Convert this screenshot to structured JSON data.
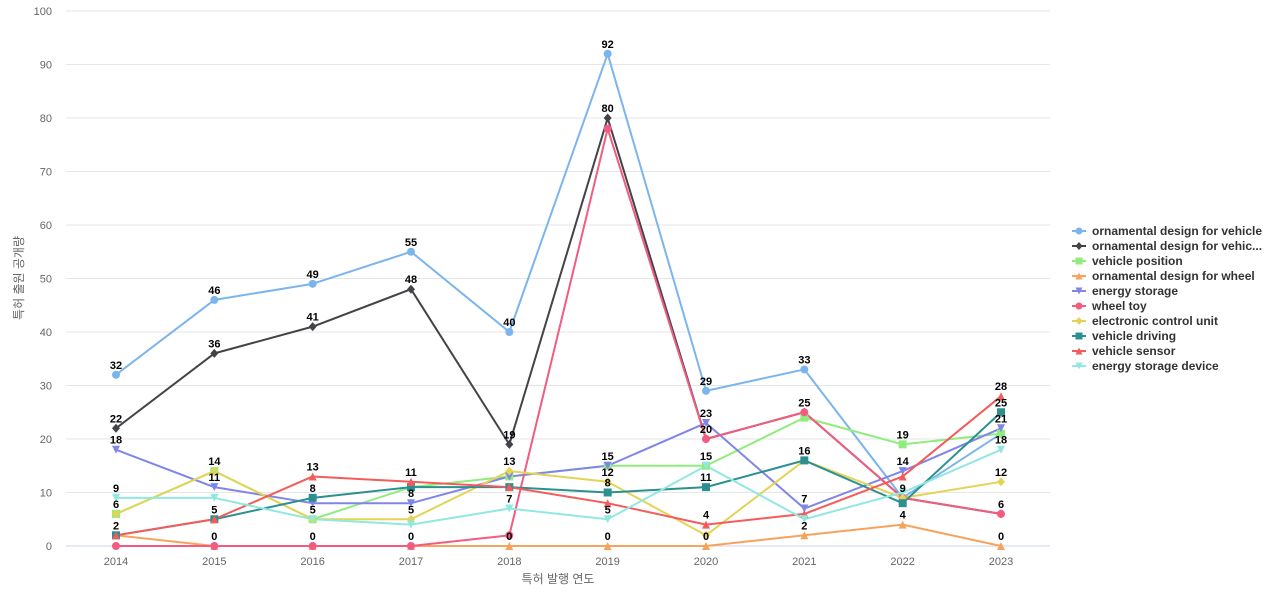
{
  "chart_data": {
    "type": "line",
    "title": "",
    "xlabel": "특허 발행 연도",
    "ylabel": "특허 출원 공개량",
    "ylim": [
      0,
      100
    ],
    "y_ticks": [
      0,
      10,
      20,
      30,
      40,
      50,
      60,
      70,
      80,
      90,
      100
    ],
    "grid": true,
    "legend_position": "right",
    "x": [
      "2014",
      "2015",
      "2016",
      "2017",
      "2018",
      "2019",
      "2020",
      "2021",
      "2022",
      "2023"
    ],
    "series": [
      {
        "name": "ornamental design for vehicle",
        "color": "#7cb5ec",
        "marker": "circle",
        "values": [
          32,
          46,
          49,
          55,
          40,
          92,
          29,
          33,
          9,
          21
        ]
      },
      {
        "name": "ornamental design for vehic...",
        "color": "#434348",
        "marker": "diamond",
        "values": [
          22,
          36,
          41,
          48,
          19,
          80,
          20,
          25,
          9,
          6
        ]
      },
      {
        "name": "vehicle position",
        "color": "#90ed7d",
        "marker": "square",
        "values": [
          6,
          14,
          5,
          11,
          13,
          15,
          15,
          24,
          19,
          21
        ]
      },
      {
        "name": "ornamental design for wheel",
        "color": "#f7a35c",
        "marker": "triangle",
        "values": [
          2,
          0,
          0,
          0,
          0,
          0,
          0,
          2,
          4,
          0
        ]
      },
      {
        "name": "energy storage",
        "color": "#8085e9",
        "marker": "triangle-down",
        "values": [
          18,
          11,
          8,
          8,
          13,
          15,
          23,
          7,
          14,
          22
        ]
      },
      {
        "name": "wheel toy",
        "color": "#f15c80",
        "marker": "circle",
        "values": [
          0,
          0,
          0,
          0,
          2,
          78,
          20,
          25,
          9,
          6
        ]
      },
      {
        "name": "electronic control unit",
        "color": "#e4d354",
        "marker": "diamond",
        "values": [
          6,
          14,
          5,
          5,
          14,
          12,
          2,
          16,
          9,
          12
        ]
      },
      {
        "name": "vehicle driving",
        "color": "#2b908f",
        "marker": "square",
        "values": [
          2,
          5,
          9,
          11,
          11,
          10,
          11,
          16,
          8,
          25
        ]
      },
      {
        "name": "vehicle sensor",
        "color": "#f45b5b",
        "marker": "triangle",
        "values": [
          2,
          5,
          13,
          12,
          11,
          8,
          4,
          6,
          13,
          28
        ]
      },
      {
        "name": "energy storage device",
        "color": "#91e8e1",
        "marker": "triangle-down",
        "values": [
          9,
          9,
          5,
          4,
          7,
          5,
          15,
          5,
          10,
          18
        ]
      }
    ],
    "data_labels": [
      {
        "x": "2014",
        "text": "32",
        "y": 32
      },
      {
        "x": "2014",
        "text": "22",
        "y": 22
      },
      {
        "x": "2014",
        "text": "18",
        "y": 18
      },
      {
        "x": "2014",
        "text": "9",
        "y": 9
      },
      {
        "x": "2014",
        "text": "6",
        "y": 6
      },
      {
        "x": "2014",
        "text": "2",
        "y": 2
      },
      {
        "x": "2015",
        "text": "46",
        "y": 46
      },
      {
        "x": "2015",
        "text": "36",
        "y": 36
      },
      {
        "x": "2015",
        "text": "14",
        "y": 14
      },
      {
        "x": "2015",
        "text": "11",
        "y": 11
      },
      {
        "x": "2015",
        "text": "5",
        "y": 5
      },
      {
        "x": "2015",
        "text": "0",
        "y": 0
      },
      {
        "x": "2016",
        "text": "49",
        "y": 49
      },
      {
        "x": "2016",
        "text": "41",
        "y": 41
      },
      {
        "x": "2016",
        "text": "13",
        "y": 13
      },
      {
        "x": "2016",
        "text": "8",
        "y": 9
      },
      {
        "x": "2016",
        "text": "5",
        "y": 5
      },
      {
        "x": "2016",
        "text": "0",
        "y": 0
      },
      {
        "x": "2017",
        "text": "55",
        "y": 55
      },
      {
        "x": "2017",
        "text": "48",
        "y": 48
      },
      {
        "x": "2017",
        "text": "11",
        "y": 12
      },
      {
        "x": "2017",
        "text": "8",
        "y": 8
      },
      {
        "x": "2017",
        "text": "5",
        "y": 5
      },
      {
        "x": "2017",
        "text": "0",
        "y": 0
      },
      {
        "x": "2018",
        "text": "40",
        "y": 40
      },
      {
        "x": "2018",
        "text": "19",
        "y": 19
      },
      {
        "x": "2018",
        "text": "13",
        "y": 14
      },
      {
        "x": "2018",
        "text": "7",
        "y": 7
      },
      {
        "x": "2018",
        "text": "0",
        "y": 0
      },
      {
        "x": "2019",
        "text": "92",
        "y": 92
      },
      {
        "x": "2019",
        "text": "80",
        "y": 80
      },
      {
        "x": "2019",
        "text": "15",
        "y": 15
      },
      {
        "x": "2019",
        "text": "12",
        "y": 12
      },
      {
        "x": "2019",
        "text": "8",
        "y": 10
      },
      {
        "x": "2019",
        "text": "5",
        "y": 5
      },
      {
        "x": "2019",
        "text": "0",
        "y": 0
      },
      {
        "x": "2020",
        "text": "29",
        "y": 29
      },
      {
        "x": "2020",
        "text": "23",
        "y": 23
      },
      {
        "x": "2020",
        "text": "20",
        "y": 20
      },
      {
        "x": "2020",
        "text": "15",
        "y": 15
      },
      {
        "x": "2020",
        "text": "11",
        "y": 11
      },
      {
        "x": "2020",
        "text": "4",
        "y": 4
      },
      {
        "x": "2020",
        "text": "0",
        "y": 0
      },
      {
        "x": "2021",
        "text": "33",
        "y": 33
      },
      {
        "x": "2021",
        "text": "25",
        "y": 25
      },
      {
        "x": "2021",
        "text": "16",
        "y": 16
      },
      {
        "x": "2021",
        "text": "7",
        "y": 7
      },
      {
        "x": "2021",
        "text": "2",
        "y": 2
      },
      {
        "x": "2022",
        "text": "19",
        "y": 19
      },
      {
        "x": "2022",
        "text": "14",
        "y": 14
      },
      {
        "x": "2022",
        "text": "9",
        "y": 9
      },
      {
        "x": "2022",
        "text": "4",
        "y": 4
      },
      {
        "x": "2023",
        "text": "28",
        "y": 28
      },
      {
        "x": "2023",
        "text": "25",
        "y": 25
      },
      {
        "x": "2023",
        "text": "21",
        "y": 22
      },
      {
        "x": "2023",
        "text": "18",
        "y": 18
      },
      {
        "x": "2023",
        "text": "12",
        "y": 12
      },
      {
        "x": "2023",
        "text": "6",
        "y": 6
      },
      {
        "x": "2023",
        "text": "0",
        "y": 0
      }
    ]
  }
}
